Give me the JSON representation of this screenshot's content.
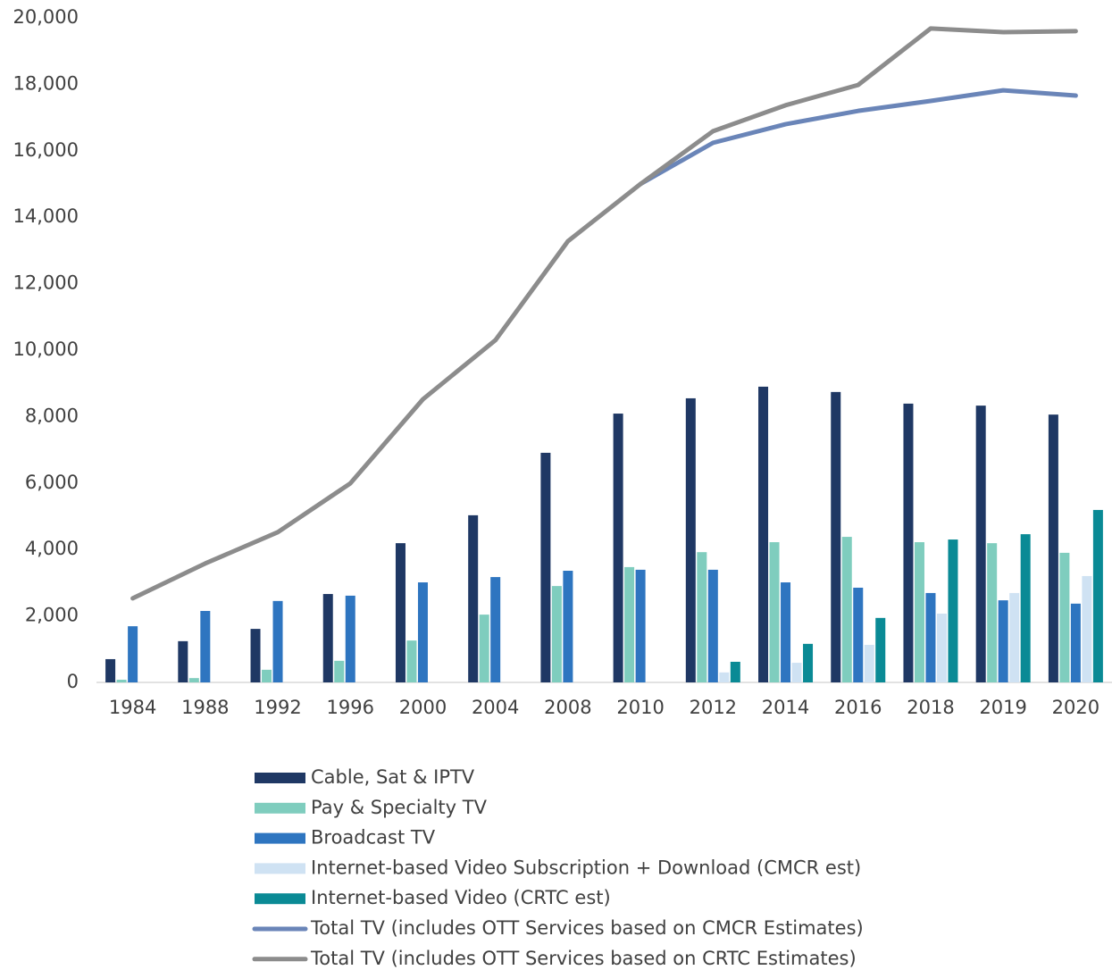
{
  "chart_data": {
    "type": "bar-line",
    "categories": [
      "1984",
      "1988",
      "1992",
      "1996",
      "2000",
      "2004",
      "2008",
      "2010",
      "2012",
      "2014",
      "2016",
      "2018",
      "2019",
      "2020"
    ],
    "series": [
      {
        "name": "Cable, Sat & IPTV",
        "type": "bar",
        "color": "#1f3864",
        "values": [
          700,
          1240,
          1610,
          2660,
          4190,
          5030,
          6910,
          8090,
          8550,
          8900,
          8740,
          8390,
          8330,
          8060
        ]
      },
      {
        "name": "Pay & Specialty TV",
        "type": "bar",
        "color": "#7fcdbe",
        "values": [
          80,
          130,
          380,
          650,
          1260,
          2040,
          2900,
          3470,
          3920,
          4220,
          4380,
          4220,
          4190,
          3900
        ]
      },
      {
        "name": "Broadcast TV",
        "type": "bar",
        "color": "#2e75c0",
        "values": [
          1690,
          2150,
          2450,
          2610,
          3010,
          3170,
          3360,
          3390,
          3390,
          3010,
          2850,
          2690,
          2470,
          2370
        ]
      },
      {
        "name": "Internet-based Video Subscription + Download (CMCR est)",
        "type": "bar",
        "color": "#cfe2f3",
        "values": [
          null,
          null,
          null,
          null,
          null,
          null,
          null,
          null,
          300,
          590,
          1130,
          2070,
          2690,
          3200
        ]
      },
      {
        "name": "Internet-based Video (CRTC est)",
        "type": "bar",
        "color": "#0a8a95",
        "values": [
          null,
          null,
          null,
          null,
          null,
          null,
          null,
          null,
          620,
          1160,
          1940,
          4300,
          4460,
          5190
        ]
      },
      {
        "name": "Total TV (includes OTT Services based on CMCR Estimates)",
        "type": "line",
        "color": "#6a85b8",
        "values": [
          null,
          null,
          null,
          null,
          null,
          null,
          null,
          15000,
          16240,
          16800,
          17200,
          17500,
          17820,
          17660
        ]
      },
      {
        "name": "Total TV (includes OTT Services based on CRTC Estimates)",
        "type": "line",
        "color": "#8c8c8c",
        "values": [
          2530,
          3580,
          4520,
          5990,
          8520,
          10300,
          13280,
          15000,
          16590,
          17370,
          17980,
          19680,
          19570,
          19600
        ]
      }
    ],
    "ylim": [
      0,
      20000
    ],
    "yticks": [
      0,
      {
        "value": 2000,
        "label": "2,000"
      },
      {
        "value": 4000,
        "label": "4,000"
      },
      {
        "value": 6000,
        "label": "6,000"
      },
      {
        "value": 8000,
        "label": "8,000"
      },
      {
        "value": 10000,
        "label": "10,000"
      },
      {
        "value": 12000,
        "label": "12,000"
      },
      {
        "value": 14000,
        "label": "14,000"
      },
      {
        "value": 16000,
        "label": "16,000"
      },
      {
        "value": 18000,
        "label": "18,000"
      },
      {
        "value": 20000,
        "label": "20,000"
      }
    ],
    "grid": false,
    "legend": "bottom"
  }
}
